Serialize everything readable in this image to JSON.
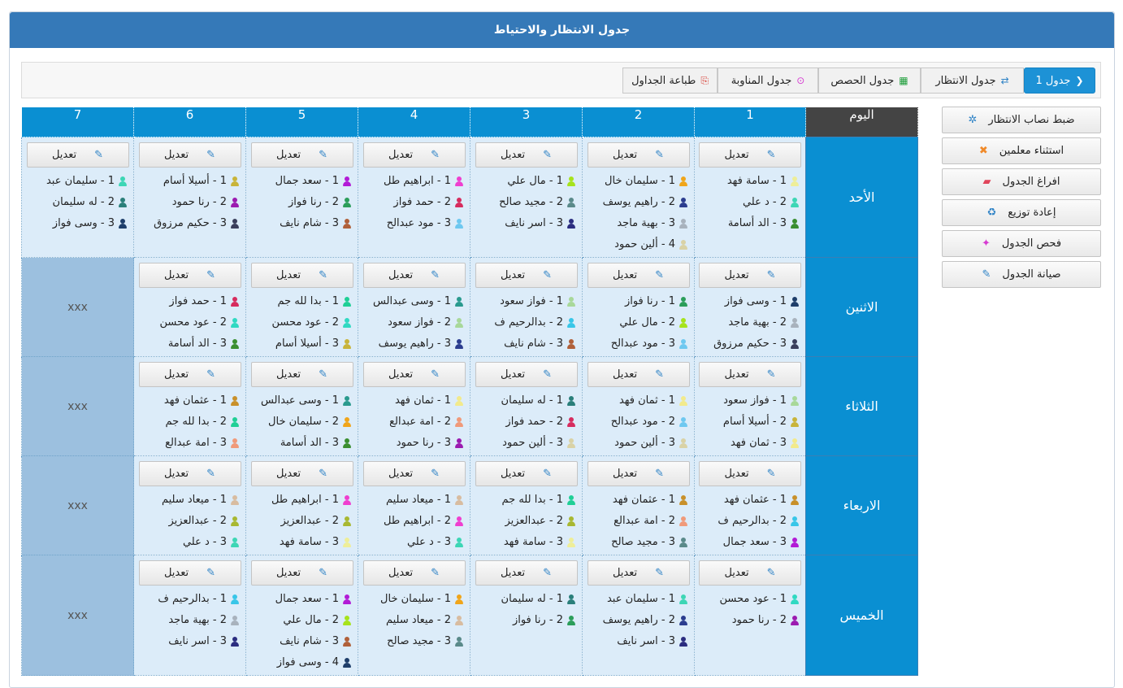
{
  "title": "جدول الانتظار والاحتياط",
  "tabs": [
    {
      "label": "جدول 1",
      "icon": "chevron-left-icon",
      "glyph": "❮",
      "active": true
    },
    {
      "label": "جدول الانتظار",
      "icon": "refresh-icon",
      "glyph": "⇄"
    },
    {
      "label": "جدول الحصص",
      "icon": "table-icon",
      "glyph": "▦"
    },
    {
      "label": "جدول المناوبة",
      "icon": "shield-icon",
      "glyph": "⊙"
    },
    {
      "label": "طباعة الجداول",
      "icon": "pdf-icon",
      "glyph": "⎘"
    }
  ],
  "grid": {
    "day_header": "اليوم",
    "periods": [
      "1",
      "2",
      "3",
      "4",
      "5",
      "6",
      "7"
    ],
    "edit_label": "تعديل",
    "empty_mark": "xxx",
    "days": [
      {
        "name": "الأحد",
        "cells": [
          [
            {
              "t": "1 - سامة فهد",
              "c": "#eeee99"
            },
            {
              "t": "2 - د علي",
              "c": "#3dd6b5"
            },
            {
              "t": "3 - الد أسامة",
              "c": "#3a8e30"
            }
          ],
          [
            {
              "t": "1 - سليمان خال",
              "c": "#f0a51a"
            },
            {
              "t": "2 - راهيم يوسف",
              "c": "#2b3d8f"
            },
            {
              "t": "3 - بهية ماجد",
              "c": "#a8b2bd"
            },
            {
              "t": "4 - ألين حمود",
              "c": "#d9d2a6"
            }
          ],
          [
            {
              "t": "1 - مال علي",
              "c": "#a6e31c"
            },
            {
              "t": "2 - مجيد صالح",
              "c": "#5a8a8a"
            },
            {
              "t": "3 - اسر نايف",
              "c": "#2b2d80"
            }
          ],
          [
            {
              "t": "1 - ابراهيم طل",
              "c": "#ef3fcf"
            },
            {
              "t": "2 - حمد فواز",
              "c": "#d62c5e"
            },
            {
              "t": "3 - مود عبدالح",
              "c": "#6ec8f0"
            }
          ],
          [
            {
              "t": "1 - سعد جمال",
              "c": "#b21bd6"
            },
            {
              "t": "2 - رنا فواز",
              "c": "#2b9e5a"
            },
            {
              "t": "3 - شام نايف",
              "c": "#b0603a"
            }
          ],
          [
            {
              "t": "1 - أسيلا أسام",
              "c": "#c8b43a"
            },
            {
              "t": "2 - رنا حمود",
              "c": "#9b1bb0"
            },
            {
              "t": "3 - حكيم مرزوق",
              "c": "#3a3f5c"
            }
          ],
          [
            {
              "t": "1 - سليمان عبد",
              "c": "#3dd6b5"
            },
            {
              "t": "2 - له سليمان",
              "c": "#2a7f7a"
            },
            {
              "t": "3 - وسى فواز",
              "c": "#1e3e6a"
            }
          ]
        ]
      },
      {
        "name": "الاثنين",
        "cells": [
          [
            {
              "t": "1 - وسى فواز",
              "c": "#1e3e6a"
            },
            {
              "t": "2 - بهية ماجد",
              "c": "#a8b2bd"
            },
            {
              "t": "3 - حكيم مرزوق",
              "c": "#3a3f5c"
            }
          ],
          [
            {
              "t": "1 - رنا فواز",
              "c": "#2b9e5a"
            },
            {
              "t": "2 - مال علي",
              "c": "#a6e31c"
            },
            {
              "t": "3 - مود عبدالح",
              "c": "#6ec8f0"
            }
          ],
          [
            {
              "t": "1 - فواز سعود",
              "c": "#a8d89a"
            },
            {
              "t": "2 - بدالرحيم ف",
              "c": "#38c6e8"
            },
            {
              "t": "3 - شام نايف",
              "c": "#b0603a"
            }
          ],
          [
            {
              "t": "1 - وسى عبدالس",
              "c": "#2a9a8e"
            },
            {
              "t": "2 - فواز سعود",
              "c": "#a8d89a"
            },
            {
              "t": "3 - راهيم يوسف",
              "c": "#2b3d8f"
            }
          ],
          [
            {
              "t": "1 - بدا لله جم",
              "c": "#1fcf96"
            },
            {
              "t": "2 - عود محسن",
              "c": "#30d9c2"
            },
            {
              "t": "3 - أسيلا أسام",
              "c": "#c8b43a"
            }
          ],
          [
            {
              "t": "1 - حمد فواز",
              "c": "#d62c5e"
            },
            {
              "t": "2 - عود محسن",
              "c": "#30d9c2"
            },
            {
              "t": "3 - الد أسامة",
              "c": "#3a8e30"
            }
          ],
          null
        ]
      },
      {
        "name": "الثلاثاء",
        "cells": [
          [
            {
              "t": "1 - فواز سعود",
              "c": "#a8d89a"
            },
            {
              "t": "2 - أسيلا أسام",
              "c": "#c8b43a"
            },
            {
              "t": "3 - ثمان فهد",
              "c": "#f2ea8c"
            }
          ],
          [
            {
              "t": "1 - ثمان فهد",
              "c": "#f2ea8c"
            },
            {
              "t": "2 - مود عبدالح",
              "c": "#6ec8f0"
            },
            {
              "t": "3 - ألين حمود",
              "c": "#d9d2a6"
            }
          ],
          [
            {
              "t": "1 - له سليمان",
              "c": "#2a7f7a"
            },
            {
              "t": "2 - حمد فواز",
              "c": "#d62c5e"
            },
            {
              "t": "3 - ألين حمود",
              "c": "#d9d2a6"
            }
          ],
          [
            {
              "t": "1 - ثمان فهد",
              "c": "#f2ea8c"
            },
            {
              "t": "2 - امة عبدالع",
              "c": "#f09a7a"
            },
            {
              "t": "3 - رنا حمود",
              "c": "#9b1bb0"
            }
          ],
          [
            {
              "t": "1 - وسى عبدالس",
              "c": "#2a9a8e"
            },
            {
              "t": "2 - سليمان خال",
              "c": "#f0a51a"
            },
            {
              "t": "3 - الد أسامة",
              "c": "#3a8e30"
            }
          ],
          [
            {
              "t": "1 - عثمان فهد",
              "c": "#c8902a"
            },
            {
              "t": "2 - بدا لله جم",
              "c": "#1fcf96"
            },
            {
              "t": "3 - امة عبدالع",
              "c": "#f09a7a"
            }
          ],
          null
        ]
      },
      {
        "name": "الاربعاء",
        "cells": [
          [
            {
              "t": "1 - عثمان فهد",
              "c": "#c8902a"
            },
            {
              "t": "2 - بدالرحيم ف",
              "c": "#38c6e8"
            },
            {
              "t": "3 - سعد جمال",
              "c": "#b21bd6"
            }
          ],
          [
            {
              "t": "1 - عثمان فهد",
              "c": "#c8902a"
            },
            {
              "t": "2 - امة عبدالع",
              "c": "#f09a7a"
            },
            {
              "t": "3 - مجيد صالح",
              "c": "#5a8a8a"
            }
          ],
          [
            {
              "t": "1 - بدا لله جم",
              "c": "#1fcf96"
            },
            {
              "t": "2 - عبدالعزيز",
              "c": "#a8b832"
            },
            {
              "t": "3 - سامة فهد",
              "c": "#eeee99"
            }
          ],
          [
            {
              "t": "1 - ميعاد سليم",
              "c": "#d8bca0"
            },
            {
              "t": "2 - ابراهيم طل",
              "c": "#ef3fcf"
            },
            {
              "t": "3 - د علي",
              "c": "#3dd6b5"
            }
          ],
          [
            {
              "t": "1 - ابراهيم طل",
              "c": "#ef3fcf"
            },
            {
              "t": "2 - عبدالعزيز",
              "c": "#a8b832"
            },
            {
              "t": "3 - سامة فهد",
              "c": "#eeee99"
            }
          ],
          [
            {
              "t": "1 - ميعاد سليم",
              "c": "#d8bca0"
            },
            {
              "t": "2 - عبدالعزيز",
              "c": "#a8b832"
            },
            {
              "t": "3 - د علي",
              "c": "#3dd6b5"
            }
          ],
          null
        ]
      },
      {
        "name": "الخميس",
        "cells": [
          [
            {
              "t": "1 - عود محسن",
              "c": "#30d9c2"
            },
            {
              "t": "2 - رنا حمود",
              "c": "#9b1bb0"
            }
          ],
          [
            {
              "t": "1 - سليمان عبد",
              "c": "#3dd6b5"
            },
            {
              "t": "2 - راهيم يوسف",
              "c": "#2b3d8f"
            },
            {
              "t": "3 - اسر نايف",
              "c": "#2b2d80"
            }
          ],
          [
            {
              "t": "1 - له سليمان",
              "c": "#2a7f7a"
            },
            {
              "t": "2 - رنا فواز",
              "c": "#2b9e5a"
            }
          ],
          [
            {
              "t": "1 - سليمان خال",
              "c": "#f0a51a"
            },
            {
              "t": "2 - ميعاد سليم",
              "c": "#d8bca0"
            },
            {
              "t": "3 - مجيد صالح",
              "c": "#5a8a8a"
            }
          ],
          [
            {
              "t": "1 - سعد جمال",
              "c": "#b21bd6"
            },
            {
              "t": "2 - مال علي",
              "c": "#a6e31c"
            },
            {
              "t": "3 - شام نايف",
              "c": "#b0603a"
            },
            {
              "t": "4 - وسى فواز",
              "c": "#1e3e6a"
            }
          ],
          [
            {
              "t": "1 - بدالرحيم ف",
              "c": "#38c6e8"
            },
            {
              "t": "2 - بهية ماجد",
              "c": "#a8b2bd"
            },
            {
              "t": "3 - اسر نايف",
              "c": "#2b2d80"
            }
          ],
          null
        ]
      }
    ]
  },
  "side_buttons": [
    {
      "label": "ضبط نصاب الانتظار",
      "icon": "gear-icon",
      "glyph": "✲",
      "color": "#2f83c6"
    },
    {
      "label": "استثناء معلمين",
      "icon": "user-remove-icon",
      "glyph": "✖",
      "color": "#f08a2a"
    },
    {
      "label": "افراغ الجدول",
      "icon": "eraser-icon",
      "glyph": "▰",
      "color": "#e0445a"
    },
    {
      "label": "إعادة توزيع",
      "icon": "recycle-icon",
      "glyph": "♻",
      "color": "#2f83c6"
    },
    {
      "label": "فحص الجدول",
      "icon": "magic-wand-icon",
      "glyph": "✦",
      "color": "#d63ad1"
    },
    {
      "label": "صيانة الجدول",
      "icon": "wrench-icon",
      "glyph": "✎",
      "color": "#2f83c6"
    }
  ]
}
